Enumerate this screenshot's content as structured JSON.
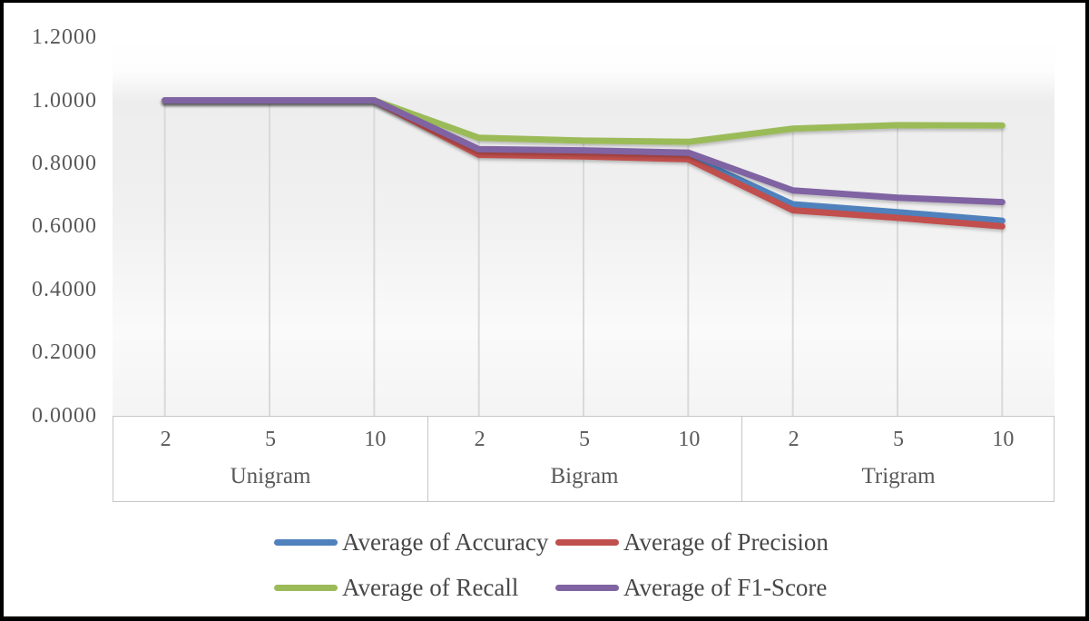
{
  "chart_data": {
    "type": "line",
    "title": "",
    "y_axis": {
      "min": 0.0,
      "max": 1.2,
      "tick_labels": [
        "1.2000",
        "1.0000",
        "0.8000",
        "0.6000",
        "0.4000",
        "0.2000",
        "0.0000"
      ],
      "tick_values": [
        1.2,
        1.0,
        0.8,
        0.6,
        0.4,
        0.2,
        0.0
      ],
      "number_format": "0.0000"
    },
    "x_axis": {
      "groups": [
        {
          "label": "Unigram",
          "ticks": [
            "2",
            "5",
            "10"
          ]
        },
        {
          "label": "Bigram",
          "ticks": [
            "2",
            "5",
            "10"
          ]
        },
        {
          "label": "Trigram",
          "ticks": [
            "2",
            "5",
            "10"
          ]
        }
      ]
    },
    "series": [
      {
        "name": "Average of Accuracy",
        "color": "#4F81BD",
        "values": [
          1.0,
          1.0,
          1.0,
          0.836,
          0.833,
          0.823,
          0.67,
          0.645,
          0.618
        ]
      },
      {
        "name": "Average of Precision",
        "color": "#C0504D",
        "values": [
          1.0,
          1.0,
          1.0,
          0.827,
          0.822,
          0.813,
          0.651,
          0.627,
          0.6
        ]
      },
      {
        "name": "Average of Recall",
        "color": "#9BBB59",
        "values": [
          1.0,
          1.0,
          1.0,
          0.881,
          0.872,
          0.868,
          0.91,
          0.921,
          0.92
        ]
      },
      {
        "name": "Average of F1-Score",
        "color": "#8064A2",
        "values": [
          1.0,
          1.0,
          1.0,
          0.845,
          0.841,
          0.834,
          0.714,
          0.691,
          0.677
        ]
      }
    ],
    "legend": {
      "position": "bottom",
      "rows": [
        [
          "Average of Accuracy",
          "Average of Precision"
        ],
        [
          "Average of Recall",
          "Average of F1-Score"
        ]
      ]
    },
    "grid": {
      "drop_lines": true,
      "drop_line_color": "#D9D9D9",
      "axis_line_color": "#C6C6C6",
      "axis_text_color": "#595959"
    }
  }
}
